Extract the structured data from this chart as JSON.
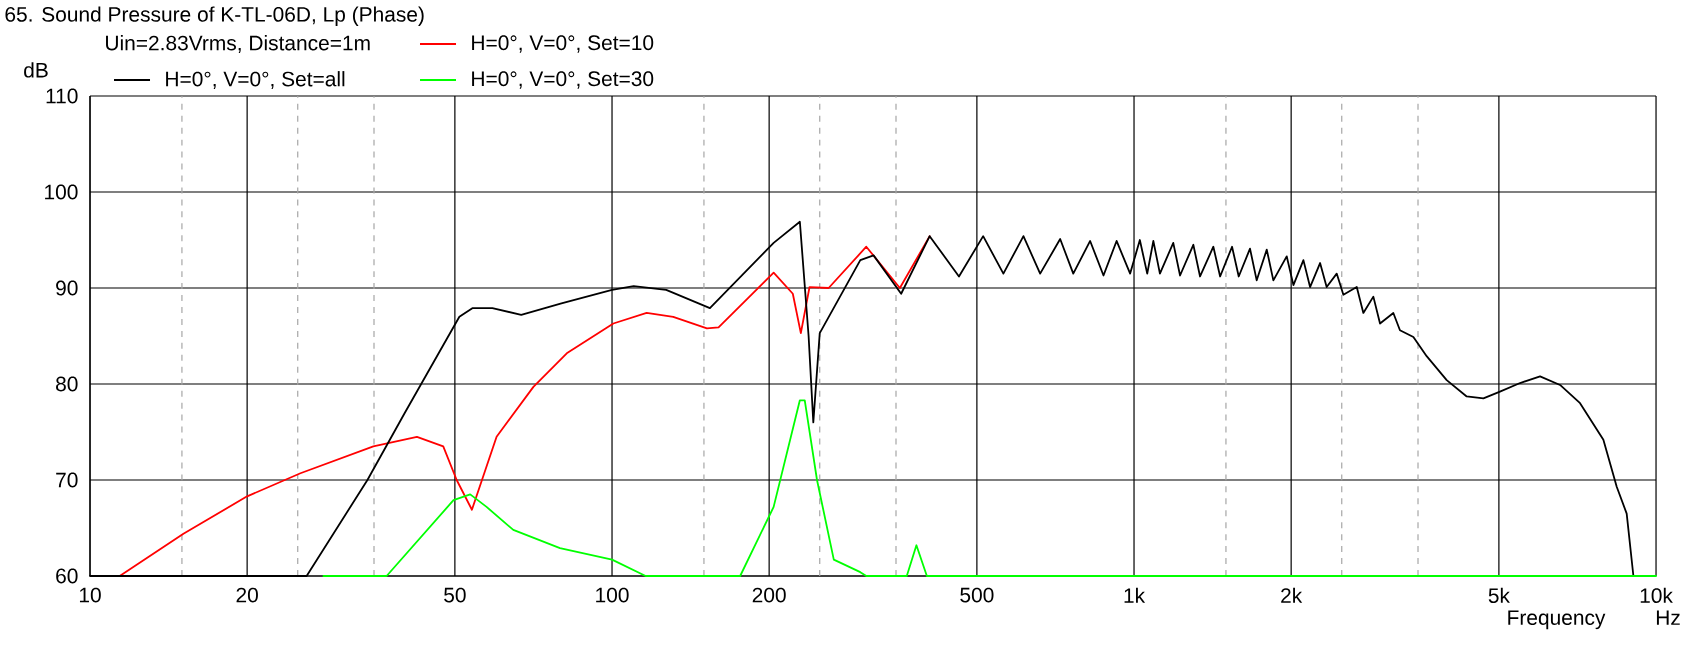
{
  "chart_data": {
    "type": "line",
    "title": "65. Sound Pressure of K-TL-06D, Lp (Phase)",
    "xlabel": "Frequency",
    "ylabel": "dB",
    "annotations": [
      "Uin=2.83Vrms, Distance=1m",
      "Hz"
    ],
    "log": "x",
    "grid": true,
    "legend": "top",
    "xlim": [
      10,
      10000
    ],
    "ylim": [
      60,
      110
    ],
    "xticks": [
      10,
      20,
      50,
      100,
      200,
      500,
      {
        "value": 1000,
        "label": "1k"
      },
      {
        "value": 2000,
        "label": "2k"
      },
      {
        "value": 5000,
        "label": "5k"
      },
      {
        "value": 10000,
        "label": "10k"
      }
    ],
    "yticks": [
      60,
      70,
      80,
      90,
      100,
      110
    ],
    "series": [
      {
        "name": "H=0°, V=0°, Set=all",
        "color": "#000000",
        "x": [
          10,
          26,
          34,
          40,
          51,
          54,
          59,
          67,
          80,
          100,
          110,
          127,
          154,
          204,
          229,
          238,
          243,
          250,
          299,
          317,
          358,
          406,
          462,
          514,
          562,
          614,
          661,
          722,
          765,
          824,
          874,
          926,
          983,
          1026,
          1060,
          1089,
          1121,
          1189,
          1225,
          1299,
          1338,
          1419,
          1462,
          1541,
          1587,
          1668,
          1718,
          1796,
          1849,
          1961,
          2020,
          2111,
          2174,
          2272,
          2339,
          2445,
          2518,
          2671,
          2750,
          2874,
          2960,
          3139,
          3232,
          3429,
          3636,
          3972,
          4338,
          4670,
          5024,
          5490,
          5996,
          6549,
          7153,
          7929,
          8408,
          8786,
          9050
        ],
        "values": [
          60,
          60,
          70,
          76.9,
          87.0,
          87.9,
          87.9,
          87.2,
          88.4,
          89.8,
          90.2,
          89.8,
          87.9,
          94.7,
          96.9,
          85,
          76,
          85.3,
          92.9,
          93.4,
          89.4,
          95.4,
          91.2,
          95.4,
          91.5,
          95.4,
          91.5,
          95.1,
          91.5,
          94.9,
          91.3,
          94.9,
          91.5,
          95.0,
          91.5,
          94.9,
          91.5,
          94.7,
          91.3,
          94.5,
          91.2,
          94.3,
          91.2,
          94.3,
          91.2,
          94.1,
          90.8,
          94.0,
          90.8,
          93.3,
          90.3,
          92.9,
          90.1,
          92.6,
          90.1,
          91.5,
          89.3,
          90.1,
          87.4,
          89.1,
          86.3,
          87.4,
          85.6,
          84.9,
          82.9,
          80.4,
          78.7,
          78.5,
          79.2,
          80.1,
          80.8,
          79.9,
          78.0,
          74.2,
          69.3,
          66.5,
          60
        ]
      },
      {
        "name": "H=0°, V=0°, Set=10",
        "color": "#ff0000",
        "x": [
          11.4,
          15.1,
          20,
          25.3,
          34.9,
          42.3,
          47.5,
          50.4,
          53.9,
          60.1,
          70.7,
          81.9,
          100.6,
          116.5,
          131,
          152,
          160,
          204,
          222,
          230,
          239,
          260,
          307,
          356,
          406
        ],
        "values": [
          60,
          64.4,
          68.3,
          70.7,
          73.5,
          74.5,
          73.5,
          70,
          66.9,
          74.5,
          79.7,
          83.2,
          86.3,
          87.4,
          87.0,
          85.8,
          85.9,
          91.6,
          89.4,
          85.3,
          90.1,
          90.0,
          94.3,
          90.0,
          95.4
        ]
      },
      {
        "name": "H=0°, V=0°, Set=30",
        "color": "#00ff00",
        "x": [
          28,
          37,
          49.7,
          53.5,
          57.5,
          64.7,
          79.5,
          100,
          116,
          176,
          204,
          229,
          234,
          247,
          266,
          299,
          307,
          367,
          383,
          401,
          10000
        ],
        "values": [
          60,
          60,
          67.9,
          68.5,
          67.2,
          64.8,
          62.9,
          61.7,
          60,
          60,
          67.2,
          78.3,
          78.3,
          70,
          61.7,
          60.4,
          60,
          60,
          63.2,
          60,
          60
        ]
      }
    ]
  }
}
